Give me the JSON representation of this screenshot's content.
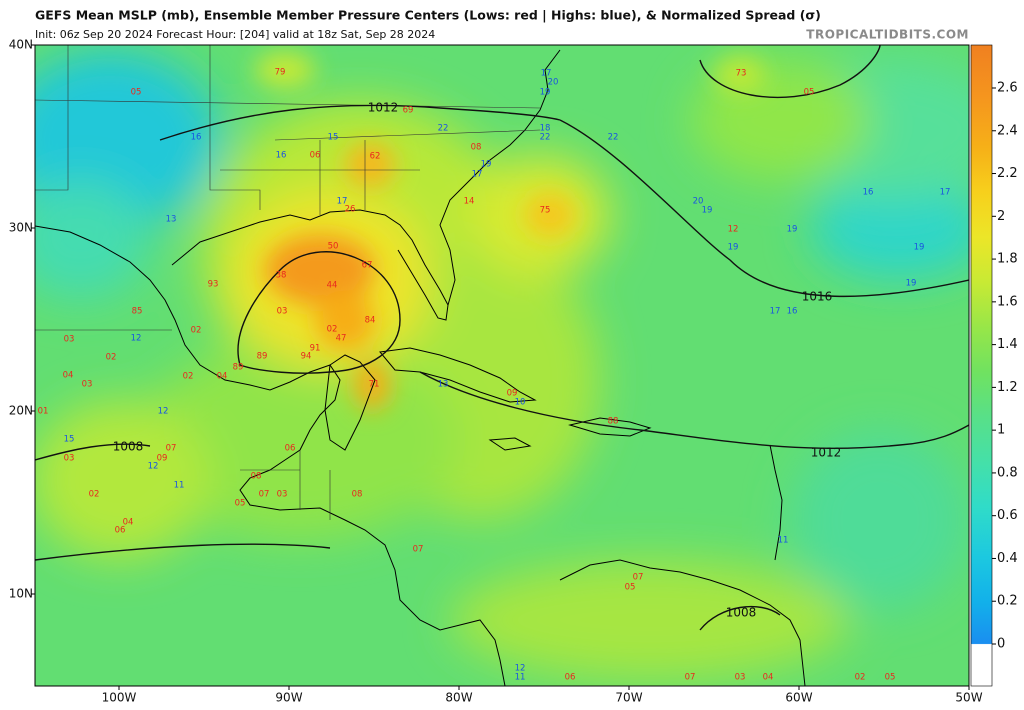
{
  "header": {
    "title": "GEFS Mean MSLP (mb), Ensemble Member Pressure Centers (Lows: red | Highs: blue), & Normalized Spread (σ)",
    "subtitle": "Init: 06z Sep 20 2024   Forecast Hour: [204]   valid at 18z Sat, Sep 28 2024",
    "site": "TROPICALTIDBITS.COM"
  },
  "map": {
    "lat_labels": [
      "40N",
      "30N",
      "20N",
      "10N"
    ],
    "lon_labels": [
      "100W",
      "90W",
      "80W",
      "70W",
      "60W",
      "50W"
    ],
    "isobar_labels": [
      "1012",
      "1016",
      "1012",
      "1008",
      "1008"
    ],
    "lows": [
      "05",
      "79",
      "69",
      "73",
      "05",
      "06",
      "62",
      "08",
      "14",
      "75",
      "26",
      "50",
      "38",
      "67",
      "44",
      "93",
      "03",
      "84",
      "02",
      "47",
      "02",
      "91",
      "89",
      "94",
      "89",
      "04",
      "02",
      "71",
      "85",
      "03",
      "02",
      "04",
      "03",
      "01",
      "03",
      "07",
      "09",
      "02",
      "04",
      "06",
      "06",
      "08",
      "07",
      "03",
      "05",
      "08",
      "07",
      "12",
      "88",
      "09",
      "07",
      "05",
      "07",
      "03",
      "04",
      "02",
      "05",
      "06"
    ],
    "highs": [
      "16",
      "16",
      "15",
      "17",
      "13",
      "17",
      "20",
      "19",
      "18",
      "22",
      "22",
      "19",
      "17",
      "22",
      "16",
      "17",
      "20",
      "19",
      "19",
      "19",
      "19",
      "19",
      "17",
      "16",
      "12",
      "13",
      "10",
      "12",
      "15",
      "12",
      "11",
      "11",
      "12",
      "11"
    ]
  },
  "colorbar": {
    "ticks": [
      0,
      0.2,
      0.4,
      0.6,
      0.8,
      1,
      1.2,
      1.4,
      1.6,
      1.8,
      2,
      2.2,
      2.4,
      2.6
    ]
  }
}
